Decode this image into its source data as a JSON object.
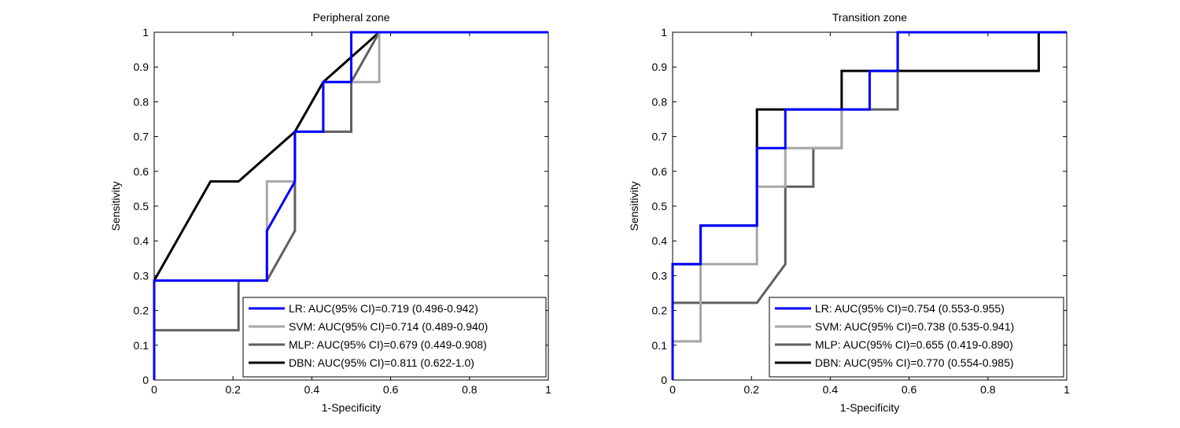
{
  "chart_data": [
    {
      "type": "line",
      "title": "Peripheral zone",
      "xlabel": "1-Specificity",
      "ylabel": "Sensitivity",
      "xlim": [
        0,
        1
      ],
      "ylim": [
        0,
        1
      ],
      "xticks": [
        "0",
        "0.2",
        "0.4",
        "0.6",
        "0.8",
        "1"
      ],
      "yticks": [
        "0",
        "0.1",
        "0.2",
        "0.3",
        "0.4",
        "0.5",
        "0.6",
        "0.7",
        "0.8",
        "0.9",
        "1"
      ],
      "grid": false,
      "legend_position": "bottom-right",
      "series": [
        {
          "name": "LR: AUC(95% CI)=0.719 (0.496-0.942)",
          "color": "#0000ff",
          "points": [
            [
              0,
              0
            ],
            [
              0,
              0.286
            ],
            [
              0.286,
              0.286
            ],
            [
              0.286,
              0.429
            ],
            [
              0.357,
              0.571
            ],
            [
              0.357,
              0.714
            ],
            [
              0.429,
              0.714
            ],
            [
              0.429,
              0.857
            ],
            [
              0.5,
              0.857
            ],
            [
              0.5,
              1
            ],
            [
              1,
              1
            ]
          ]
        },
        {
          "name": "SVM: AUC(95% CI)=0.714 (0.489-0.940)",
          "color": "#a6a6a6",
          "points": [
            [
              0,
              0
            ],
            [
              0,
              0.286
            ],
            [
              0.286,
              0.286
            ],
            [
              0.286,
              0.571
            ],
            [
              0.357,
              0.571
            ],
            [
              0.357,
              0.714
            ],
            [
              0.429,
              0.714
            ],
            [
              0.429,
              0.857
            ],
            [
              0.571,
              0.857
            ],
            [
              0.571,
              1
            ],
            [
              1,
              1
            ]
          ]
        },
        {
          "name": "MLP: AUC(95% CI)=0.679 (0.449-0.908)",
          "color": "#5f5f5f",
          "points": [
            [
              0,
              0
            ],
            [
              0,
              0.143
            ],
            [
              0.214,
              0.143
            ],
            [
              0.214,
              0.286
            ],
            [
              0.286,
              0.286
            ],
            [
              0.357,
              0.429
            ],
            [
              0.357,
              0.714
            ],
            [
              0.5,
              0.714
            ],
            [
              0.5,
              0.857
            ],
            [
              0.571,
              1
            ],
            [
              1,
              1
            ]
          ]
        },
        {
          "name": "DBN: AUC(95% CI)=0.811 (0.622-1.0)",
          "color": "#000000",
          "points": [
            [
              0,
              0
            ],
            [
              0,
              0.286
            ],
            [
              0.143,
              0.571
            ],
            [
              0.214,
              0.571
            ],
            [
              0.357,
              0.714
            ],
            [
              0.429,
              0.857
            ],
            [
              0.571,
              1
            ],
            [
              1,
              1
            ]
          ]
        }
      ]
    },
    {
      "type": "line",
      "title": "Transition zone",
      "xlabel": "1-Specificity",
      "ylabel": "Sensitivity",
      "xlim": [
        0,
        1
      ],
      "ylim": [
        0,
        1
      ],
      "xticks": [
        "0",
        "0.2",
        "0.4",
        "0.6",
        "0.8",
        "1"
      ],
      "yticks": [
        "0",
        "0.1",
        "0.2",
        "0.3",
        "0.4",
        "0.5",
        "0.6",
        "0.7",
        "0.8",
        "0.9",
        "1"
      ],
      "grid": false,
      "legend_position": "bottom-right",
      "series": [
        {
          "name": "LR: AUC(95% CI)=0.754 (0.553-0.955)",
          "color": "#0000ff",
          "points": [
            [
              0,
              0
            ],
            [
              0,
              0.333
            ],
            [
              0.071,
              0.333
            ],
            [
              0.071,
              0.444
            ],
            [
              0.214,
              0.444
            ],
            [
              0.214,
              0.667
            ],
            [
              0.286,
              0.667
            ],
            [
              0.286,
              0.778
            ],
            [
              0.5,
              0.778
            ],
            [
              0.5,
              0.889
            ],
            [
              0.571,
              0.889
            ],
            [
              0.571,
              1
            ],
            [
              1,
              1
            ]
          ]
        },
        {
          "name": "SVM: AUC(95% CI)=0.738 (0.535-0.941)",
          "color": "#a6a6a6",
          "points": [
            [
              0,
              0
            ],
            [
              0,
              0.111
            ],
            [
              0.071,
              0.111
            ],
            [
              0.071,
              0.333
            ],
            [
              0.214,
              0.333
            ],
            [
              0.214,
              0.556
            ],
            [
              0.286,
              0.556
            ],
            [
              0.286,
              0.667
            ],
            [
              0.429,
              0.667
            ],
            [
              0.429,
              0.778
            ],
            [
              0.5,
              0.778
            ],
            [
              0.5,
              0.889
            ],
            [
              0.571,
              0.889
            ],
            [
              0.571,
              1
            ],
            [
              1,
              1
            ]
          ]
        },
        {
          "name": "MLP: AUC(95% CI)=0.655 (0.419-0.890)",
          "color": "#5f5f5f",
          "points": [
            [
              0,
              0
            ],
            [
              0,
              0.222
            ],
            [
              0.214,
              0.222
            ],
            [
              0.286,
              0.333
            ],
            [
              0.286,
              0.556
            ],
            [
              0.357,
              0.556
            ],
            [
              0.357,
              0.667
            ],
            [
              0.429,
              0.667
            ],
            [
              0.429,
              0.778
            ],
            [
              0.571,
              0.778
            ],
            [
              0.571,
              1
            ],
            [
              1,
              1
            ]
          ]
        },
        {
          "name": "DBN: AUC(95% CI)=0.770 (0.554-0.985)",
          "color": "#000000",
          "points": [
            [
              0,
              0
            ],
            [
              0,
              0.333
            ],
            [
              0.071,
              0.333
            ],
            [
              0.071,
              0.444
            ],
            [
              0.214,
              0.444
            ],
            [
              0.214,
              0.778
            ],
            [
              0.429,
              0.778
            ],
            [
              0.429,
              0.889
            ],
            [
              0.929,
              0.889
            ],
            [
              0.929,
              1
            ],
            [
              1,
              1
            ]
          ]
        }
      ]
    }
  ]
}
